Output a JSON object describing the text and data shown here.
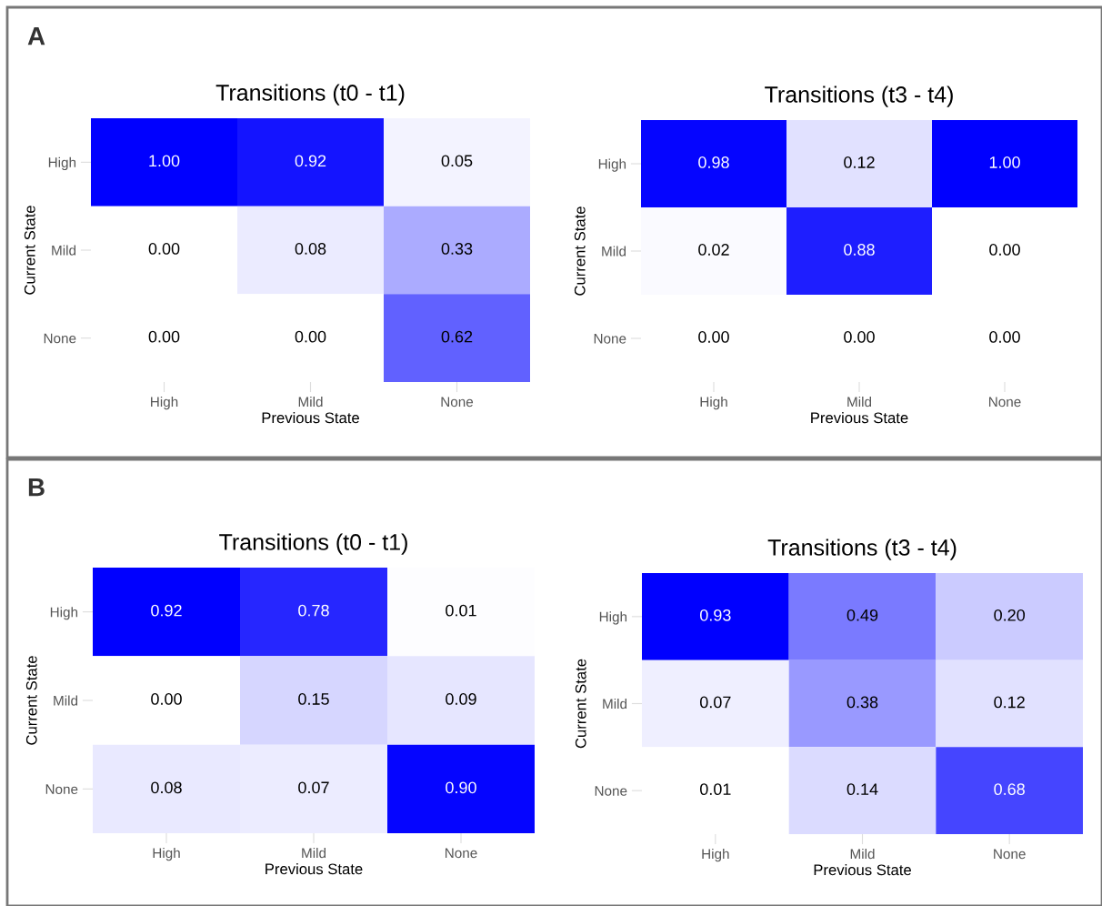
{
  "chart_data": [
    {
      "type": "heatmap",
      "title": "Transitions (t0 - t1)",
      "xlabel": "Previous State",
      "ylabel": "Current State",
      "annotations": [
        "A"
      ],
      "categories": [
        "High",
        "Mild",
        "None"
      ],
      "y_categories": [
        "High",
        "Mild",
        "None"
      ],
      "cells": [
        [
          1.0,
          0.92,
          0.05
        ],
        [
          0.0,
          0.08,
          0.33
        ],
        [
          0.0,
          0.0,
          0.62
        ]
      ],
      "cell_labels": [
        [
          "1.00",
          "0.92",
          "0.05"
        ],
        [
          "0.00",
          "0.08",
          "0.33"
        ],
        [
          "0.00",
          "0.00",
          "0.62"
        ]
      ]
    },
    {
      "type": "heatmap",
      "title": "Transitions (t3 - t4)",
      "xlabel": "Previous State",
      "ylabel": "Current State",
      "categories": [
        "High",
        "Mild",
        "None"
      ],
      "y_categories": [
        "High",
        "Mild",
        "None"
      ],
      "cells": [
        [
          0.98,
          0.12,
          1.0
        ],
        [
          0.02,
          0.88,
          0.0
        ],
        [
          0.0,
          0.0,
          0.0
        ]
      ],
      "cell_labels": [
        [
          "0.98",
          "0.12",
          "1.00"
        ],
        [
          "0.02",
          "0.88",
          "0.00"
        ],
        [
          "0.00",
          "0.00",
          "0.00"
        ]
      ]
    },
    {
      "type": "heatmap",
      "title": "Transitions (t0 - t1)",
      "xlabel": "Previous State",
      "ylabel": "Current State",
      "annotations": [
        "B"
      ],
      "categories": [
        "High",
        "Mild",
        "None"
      ],
      "y_categories": [
        "High",
        "Mild",
        "None"
      ],
      "cells": [
        [
          0.92,
          0.78,
          0.01
        ],
        [
          0.0,
          0.15,
          0.09
        ],
        [
          0.08,
          0.07,
          0.9
        ]
      ],
      "cell_labels": [
        [
          "0.92",
          "0.78",
          "0.01"
        ],
        [
          "0.00",
          "0.15",
          "0.09"
        ],
        [
          "0.08",
          "0.07",
          "0.90"
        ]
      ]
    },
    {
      "type": "heatmap",
      "title": "Transitions (t3 - t4)",
      "xlabel": "Previous State",
      "ylabel": "Current State",
      "categories": [
        "High",
        "Mild",
        "None"
      ],
      "y_categories": [
        "High",
        "Mild",
        "None"
      ],
      "cells": [
        [
          0.93,
          0.49,
          0.2
        ],
        [
          0.07,
          0.38,
          0.12
        ],
        [
          0.01,
          0.14,
          0.68
        ]
      ],
      "cell_labels": [
        [
          "0.93",
          "0.49",
          "0.20"
        ],
        [
          "0.07",
          "0.38",
          "0.12"
        ],
        [
          "0.01",
          "0.14",
          "0.68"
        ]
      ]
    }
  ]
}
